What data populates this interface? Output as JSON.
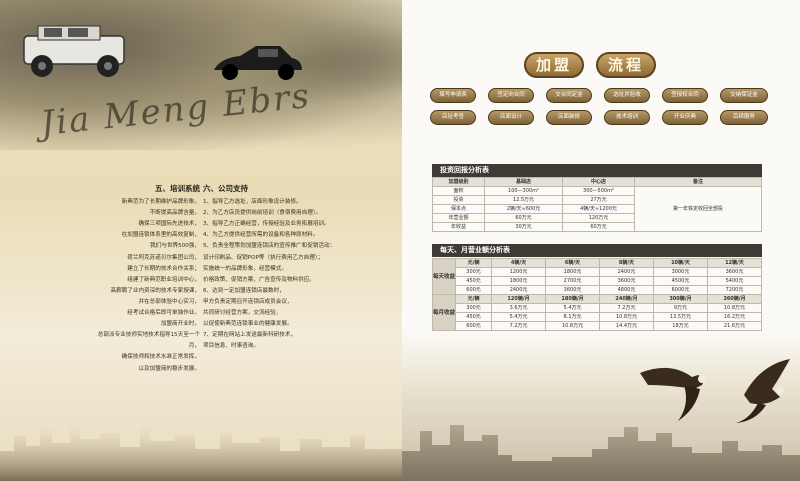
{
  "left_page": {
    "script_text": "Jia Meng Ebrs",
    "training": {
      "heading": "五、培训系统",
      "lines": [
        "新典范为了长期维护品牌形象，",
        "不断提高品牌含量，",
        "确保三项国际先进技术，",
        "在加盟连锁体系里的高效复制，",
        "我们与世界500强，",
        "荷兰阿克苏诺贝尔集团公司，",
        "建立了长期的技术合作关系；",
        "组建了新典范职业培训中心，",
        "高薪聘了业内资深的技术专家授课，",
        "并在总部体验中心实习，",
        "经考试合格后即可单独作业。",
        "加盟商开业时，",
        "总部派专业技师实地技术指导15天至一个月，",
        "确保技师和技术水准正常发挥，",
        "以及加盟商的稳步发展。"
      ]
    },
    "corporate": {
      "heading": "六、公司支持",
      "lines": [
        "1、指导乙方选址，店面形象设计装修。",
        "2、为乙方店员提供岗前培训（食宿费用自理）。",
        "3、指导乙方正确经营，传授经验及业务拓展培训。",
        "4、为乙方提供经营所需的设备和各种原材料。",
        "5、负责全程策划加盟连锁店的宣传推广和促销活动：",
        "    设计印刷品、促销POP等（执行费用乙方自理）；",
        "    实施统一的品牌形象，经营模式。",
        "    价格政策、促销方案、广告宣传及物料供应。",
        "6、达到一定加盟连锁店最数时，",
        "    甲方负责定期召开连锁店成员会议，",
        "    共同研讨经营方案，交流经验，",
        "    以促使新典范连锁事业的健康发展。",
        "7、定期在网站上发送最新科研技术，",
        "    项目信息、时事咨询。"
      ]
    }
  },
  "right_page": {
    "title": [
      "加盟",
      "流程"
    ],
    "process_steps": [
      "填写申请表",
      "签定向合同",
      "交合同定金",
      "选址并验收",
      "签授权合同",
      "交纳保证金",
      "店址考查",
      "店面设计",
      "店面装修",
      "技术培训",
      "开业庆典",
      "后续服务"
    ],
    "investment_table": {
      "title": "投资回报分析表",
      "headers": [
        "加盟级别",
        "基础店",
        "中心店",
        "备注"
      ],
      "rows": [
        [
          "面积",
          "100—300m²",
          "300—500m²"
        ],
        [
          "投资",
          "12.5万元",
          "27万元"
        ],
        [
          "保本点",
          "2辆/天≈600元",
          "4辆/天≈1200元"
        ],
        [
          "年营业额",
          "60万元",
          "120万元"
        ],
        [
          "年收益",
          "30万元",
          "60万元"
        ]
      ],
      "note": "第一年铁定收回全部投"
    },
    "revenue_table": {
      "title": "每天、月营业额分析表",
      "daily_label": "每天收益",
      "monthly_label": "每月收益",
      "daily_header": [
        "元/辆",
        "4辆/天",
        "6辆/天",
        "8辆/天",
        "10辆/天",
        "12辆/天"
      ],
      "daily_rows": [
        [
          "300元",
          "1200元",
          "1800元",
          "2400元",
          "3000元",
          "3600元"
        ],
        [
          "450元",
          "1800元",
          "2700元",
          "3600元",
          "4500元",
          "5400元"
        ],
        [
          "600元",
          "2400元",
          "3600元",
          "4800元",
          "6000元",
          "7200元"
        ]
      ],
      "monthly_header": [
        "元/辆",
        "120辆/月",
        "180辆/月",
        "240辆/月",
        "300辆/月",
        "360辆/月"
      ],
      "monthly_rows": [
        [
          "300元",
          "3.6万元",
          "5.4万元",
          "7.2万元",
          "9万元",
          "10.8万元"
        ],
        [
          "450元",
          "5.4万元",
          "8.1万元",
          "10.8万元",
          "13.5万元",
          "16.2万元"
        ],
        [
          "600元",
          "7.2万元",
          "10.8万元",
          "14.4万元",
          "18万元",
          "21.6万元"
        ]
      ]
    }
  },
  "colors": {
    "gold_dark": "#7c6238",
    "gold_light": "#c9a46a",
    "table_header": "#3e3a34",
    "paper": "#efe4c8"
  }
}
